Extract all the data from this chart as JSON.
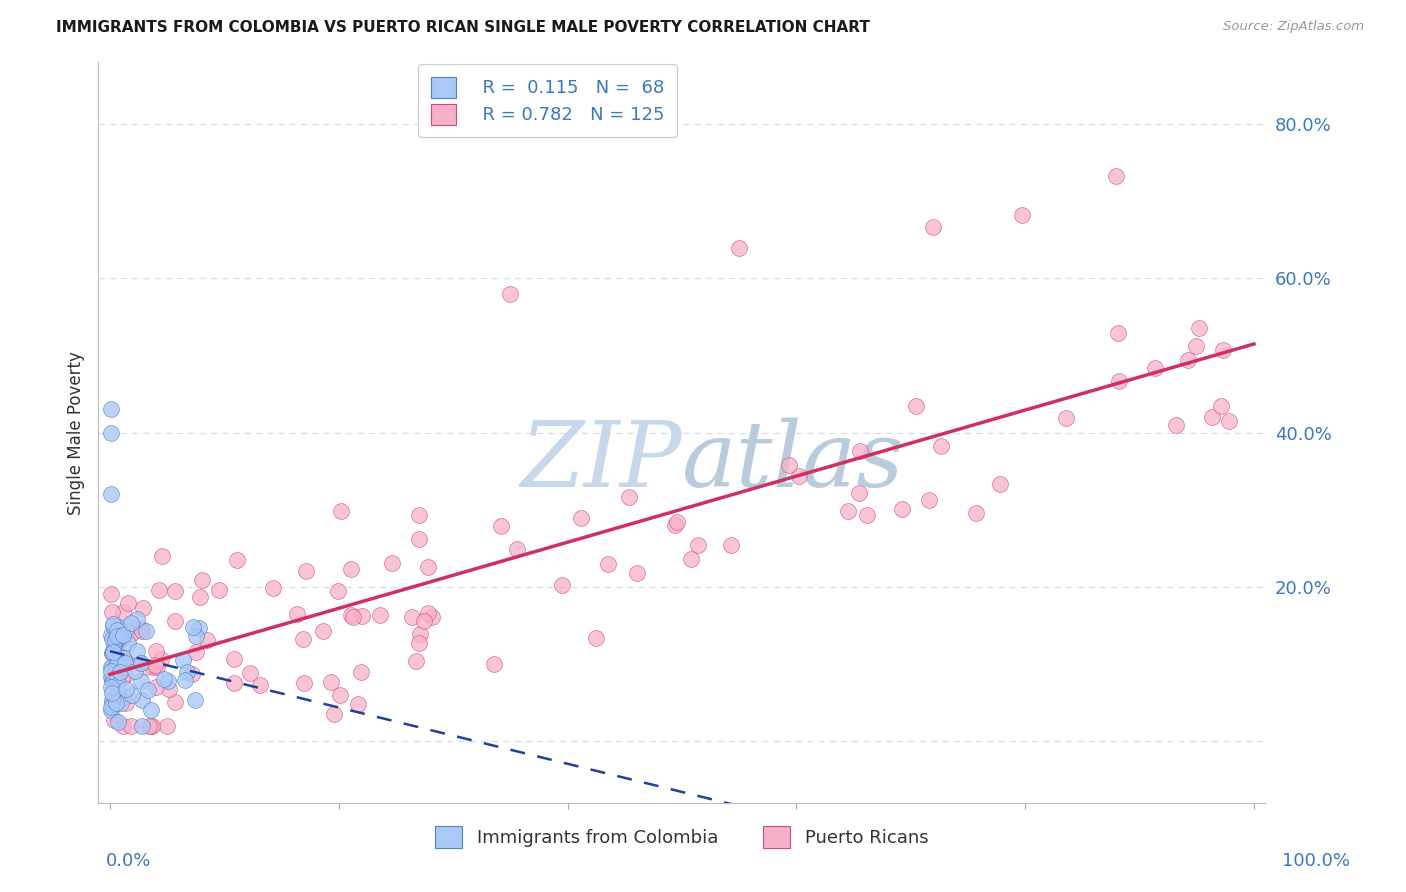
{
  "title": "IMMIGRANTS FROM COLOMBIA VS PUERTO RICAN SINGLE MALE POVERTY CORRELATION CHART",
  "source": "Source: ZipAtlas.com",
  "ylabel": "Single Male Poverty",
  "colombia_R": 0.115,
  "colombia_N": 68,
  "puerto_rico_R": 0.782,
  "puerto_rico_N": 125,
  "colombia_color": "#aac8f8",
  "colombia_edge_color": "#5580c0",
  "puerto_rico_color": "#f8b0c8",
  "puerto_rico_edge_color": "#d04878",
  "colombia_line_color": "#2040a0",
  "puerto_rico_line_color": "#d03060",
  "watermark_zip_color": "#c8d8ec",
  "watermark_atlas_color": "#b8ccdd",
  "background_color": "#ffffff",
  "grid_color": "#d4dde8",
  "axis_label_color": "#3a78c0",
  "text_color": "#333333",
  "title_color": "#1a1a1a",
  "source_color": "#999999",
  "legend_edge_color": "#cccccc",
  "colombia_pr_seed": 42,
  "xlim": [
    -0.01,
    1.01
  ],
  "ylim": [
    -0.08,
    0.88
  ],
  "ytick_positions": [
    0.0,
    0.2,
    0.4,
    0.6,
    0.8
  ],
  "ytick_labels": [
    "",
    "20.0%",
    "40.0%",
    "60.0%",
    "80.0%"
  ]
}
